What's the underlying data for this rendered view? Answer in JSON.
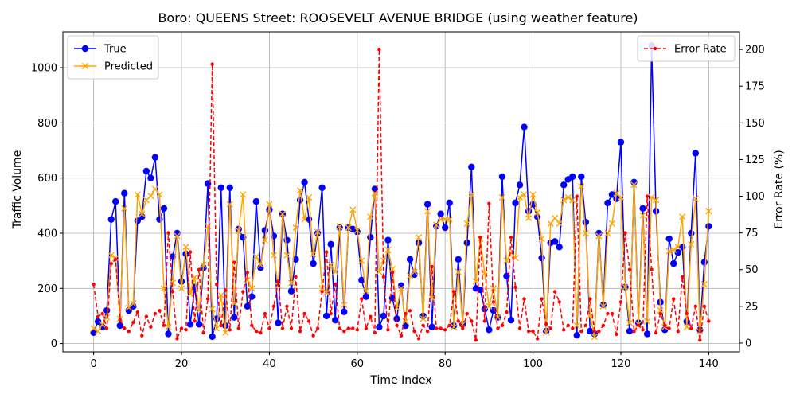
{
  "chart_data": {
    "type": "line",
    "title": "Boro: QUEENS Street: ROOSEVELT AVENUE BRIDGE (using weather feature)",
    "xlabel": "Time Index",
    "ylabel_left": "Traffic Volume",
    "ylabel_right": "Error Rate (%)",
    "xlim": [
      -7,
      147
    ],
    "ylim_left": [
      -30,
      1130
    ],
    "ylim_right": [
      -6,
      212
    ],
    "x_ticks": [
      0,
      20,
      40,
      60,
      80,
      100,
      120,
      140
    ],
    "y_ticks_left": [
      0,
      200,
      400,
      600,
      800,
      1000
    ],
    "y_ticks_right": [
      0,
      25,
      50,
      75,
      100,
      125,
      150,
      175,
      200
    ],
    "grid": true,
    "legend_left": "upper-left",
    "legend_right": "upper-right",
    "series": [
      {
        "name": "True",
        "axis": "left",
        "color": "#0000ff",
        "marker": "circle",
        "values": [
          40,
          80,
          60,
          120,
          450,
          515,
          65,
          545,
          120,
          135,
          445,
          460,
          625,
          600,
          675,
          450,
          490,
          35,
          315,
          400,
          225,
          325,
          70,
          205,
          70,
          275,
          580,
          25,
          90,
          565,
          65,
          565,
          95,
          415,
          385,
          135,
          170,
          515,
          275,
          410,
          485,
          390,
          75,
          470,
          375,
          190,
          305,
          520,
          585,
          450,
          290,
          400,
          565,
          100,
          360,
          85,
          420,
          115,
          420,
          415,
          405,
          230,
          170,
          385,
          560,
          60,
          100,
          375,
          165,
          90,
          210,
          65,
          305,
          250,
          365,
          100,
          505,
          60,
          425,
          470,
          420,
          510,
          65,
          305,
          70,
          365,
          640,
          200,
          195,
          125,
          50,
          120,
          95,
          605,
          245,
          85,
          510,
          575,
          785,
          480,
          505,
          460,
          310,
          45,
          365,
          370,
          350,
          575,
          595,
          605,
          30,
          605,
          440,
          45,
          35,
          400,
          140,
          510,
          540,
          525,
          730,
          205,
          45,
          585,
          75,
          490,
          35,
          1080,
          480,
          150,
          50,
          380,
          290,
          330,
          350,
          80,
          400,
          690,
          50,
          295,
          425
        ]
      },
      {
        "name": "Predicted",
        "axis": "left",
        "color": "#ffa500",
        "marker": "x",
        "values": [
          55,
          45,
          70,
          95,
          320,
          310,
          90,
          490,
          130,
          145,
          540,
          470,
          520,
          535,
          560,
          540,
          200,
          60,
          220,
          390,
          200,
          350,
          180,
          240,
          120,
          285,
          425,
          125,
          55,
          175,
          40,
          505,
          145,
          410,
          540,
          230,
          200,
          315,
          285,
          375,
          505,
          320,
          210,
          470,
          320,
          220,
          420,
          555,
          450,
          530,
          325,
          405,
          200,
          185,
          285,
          260,
          425,
          140,
          420,
          485,
          410,
          300,
          190,
          460,
          545,
          260,
          300,
          340,
          270,
          130,
          200,
          80,
          245,
          260,
          385,
          90,
          480,
          165,
          430,
          450,
          450,
          450,
          60,
          260,
          70,
          435,
          540,
          225,
          380,
          255,
          135,
          200,
          95,
          530,
          300,
          330,
          310,
          530,
          540,
          455,
          540,
          475,
          380,
          40,
          435,
          455,
          435,
          520,
          530,
          520,
          65,
          570,
          400,
          100,
          25,
          390,
          135,
          400,
          435,
          545,
          530,
          205,
          75,
          575,
          70,
          465,
          80,
          530,
          520,
          120,
          60,
          335,
          340,
          350,
          460,
          60,
          360,
          525,
          45,
          215,
          480
        ]
      },
      {
        "name": "Error Rate",
        "axis": "right",
        "color": "#ff0000",
        "marker": "dot",
        "values": [
          40,
          18,
          20,
          10,
          54,
          57,
          16,
          10,
          8,
          14,
          21,
          5,
          18,
          11,
          20,
          22,
          12,
          75,
          35,
          3,
          10,
          9,
          62,
          15,
          50,
          7,
          30,
          190,
          40,
          12,
          36,
          9,
          55,
          10,
          35,
          48,
          12,
          8,
          7,
          20,
          10,
          25,
          42,
          10,
          25,
          10,
          45,
          8,
          20,
          15,
          5,
          10,
          35,
          62,
          20,
          40,
          10,
          8,
          10,
          10,
          9,
          30,
          10,
          18,
          7,
          200,
          45,
          9,
          48,
          12,
          5,
          20,
          22,
          8,
          3,
          12,
          8,
          52,
          10,
          10,
          9,
          12,
          35,
          15,
          10,
          20,
          15,
          2,
          72,
          15,
          95,
          28,
          10,
          12,
          21,
          72,
          38,
          10,
          30,
          8,
          8,
          3,
          30,
          13,
          10,
          35,
          28,
          9,
          12,
          10,
          100,
          8,
          12,
          30,
          8,
          8,
          12,
          20,
          20,
          6,
          28,
          75,
          50,
          8,
          12,
          9,
          100,
          50,
          7,
          20,
          12,
          10,
          30,
          8,
          45,
          20,
          10,
          25,
          2,
          25,
          15
        ]
      }
    ]
  }
}
